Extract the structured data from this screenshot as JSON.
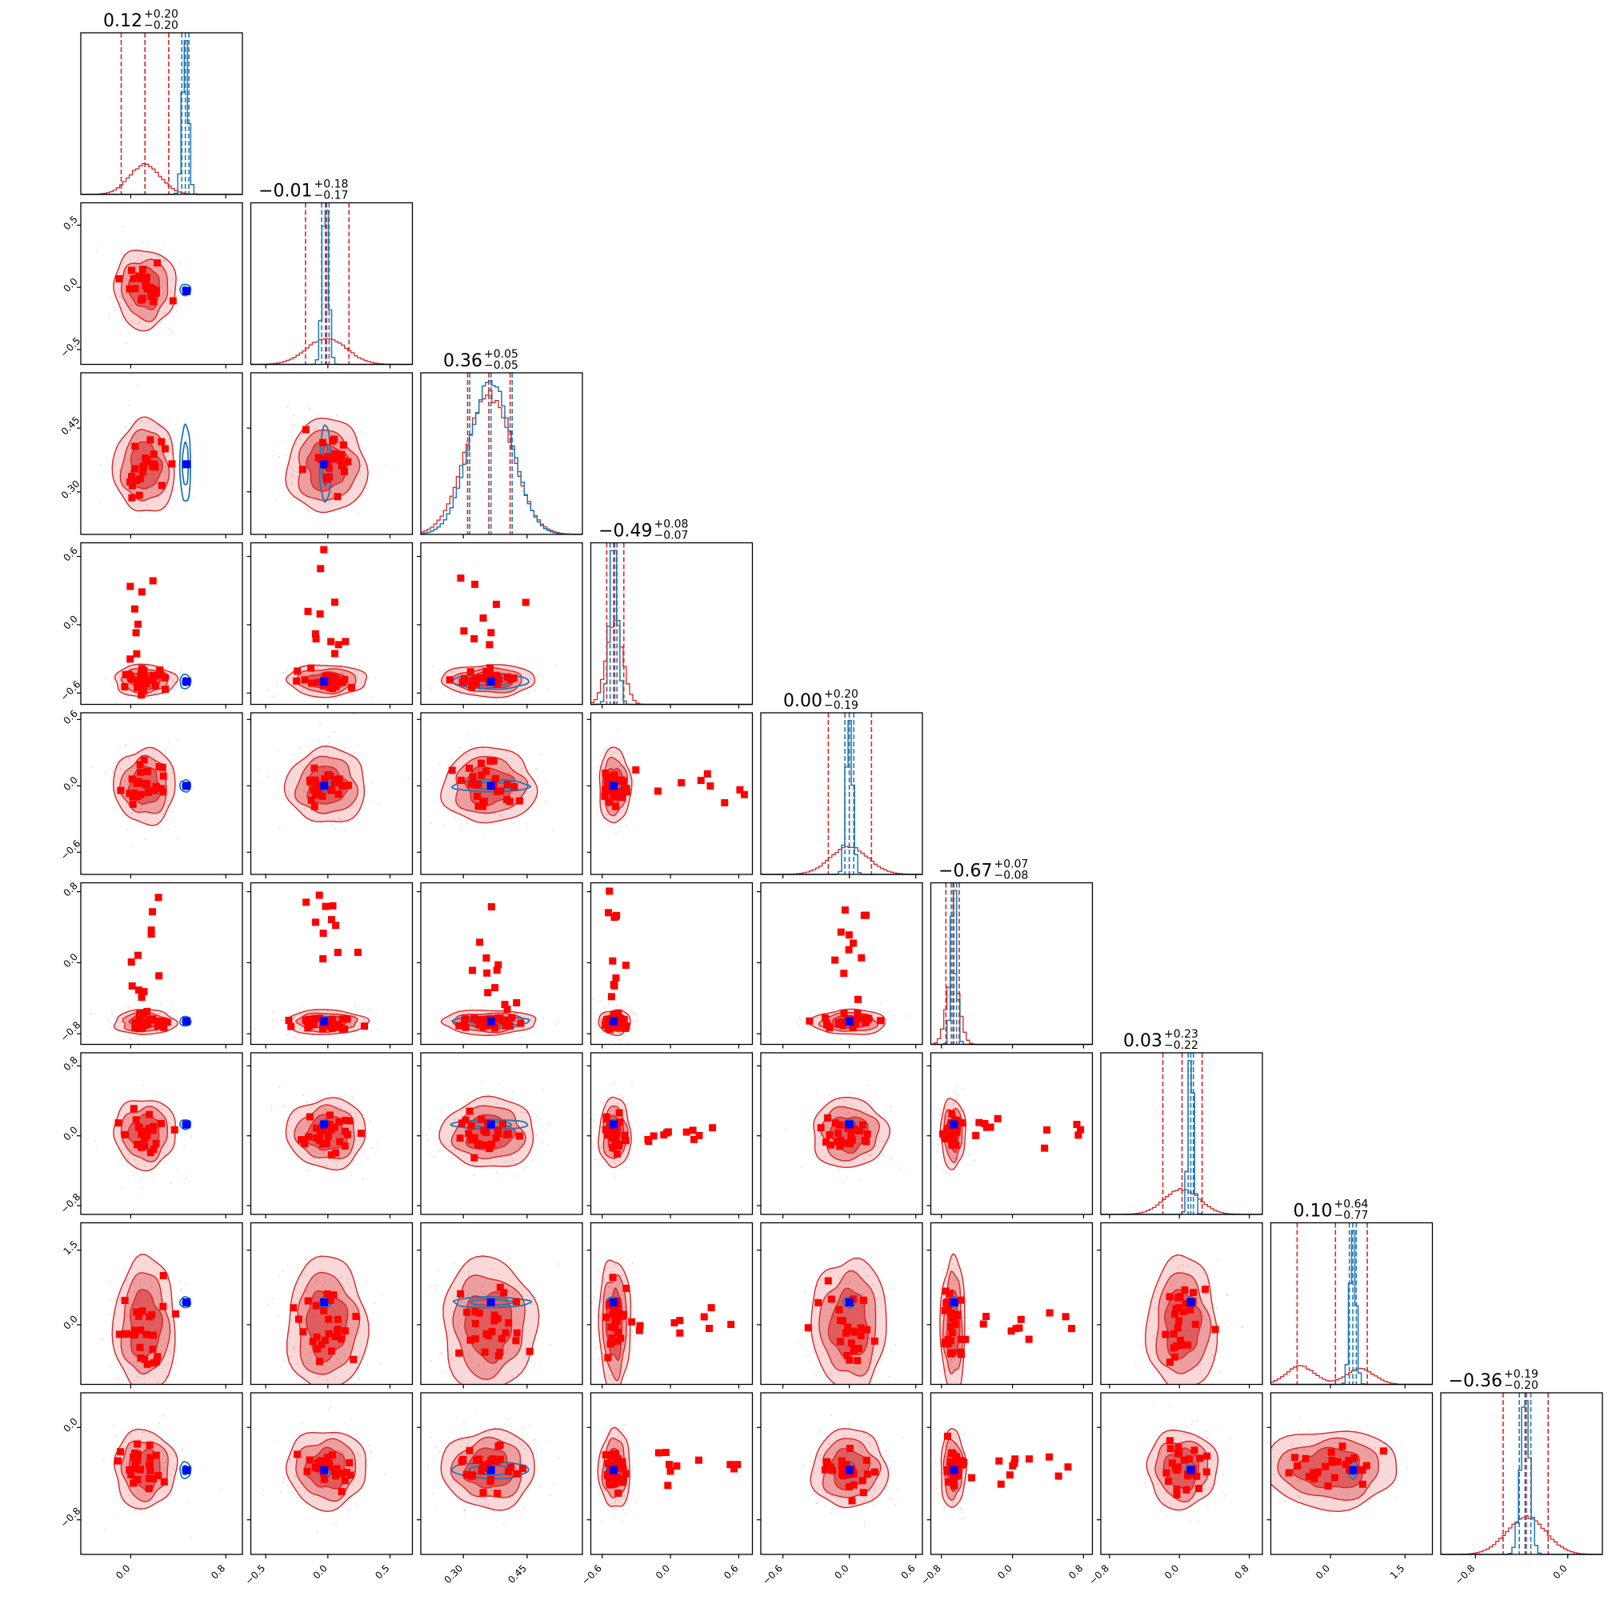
{
  "chart_data": {
    "type": "corner",
    "n_params": 9,
    "colors": {
      "posterior_a": "#d62728",
      "posterior_b": "#1f77b4",
      "sample_markers": "#ff0000",
      "truth_marker": "#0000ff",
      "frame": "#000000"
    },
    "params": [
      {
        "index": 0,
        "range": [
          -0.42,
          0.94
        ],
        "ticks": [
          0.0,
          0.8
        ],
        "tick_labels": [
          "0.0",
          "0.8"
        ],
        "title": {
          "median": "0.12",
          "plus": "+0.20",
          "minus": "−0.20"
        },
        "posterior_a": {
          "median": 0.12,
          "lo": -0.08,
          "hi": 0.32,
          "sd": 0.13
        },
        "posterior_b": {
          "median": 0.46,
          "lo": 0.43,
          "hi": 0.49,
          "sd": 0.025
        },
        "truth": 0.47
      },
      {
        "index": 1,
        "range": [
          -0.62,
          0.68
        ],
        "ticks": [
          -0.5,
          0.0,
          0.5
        ],
        "tick_labels": [
          "−0.5",
          "0.0",
          "0.5"
        ],
        "title": {
          "median": "−0.01",
          "plus": "+0.18",
          "minus": "−0.17"
        },
        "posterior_a": {
          "median": -0.01,
          "lo": -0.18,
          "hi": 0.17,
          "sd": 0.16
        },
        "posterior_b": {
          "median": -0.02,
          "lo": -0.05,
          "hi": 0.01,
          "sd": 0.025
        },
        "truth": -0.03
      },
      {
        "index": 2,
        "range": [
          0.2,
          0.58
        ],
        "ticks": [
          0.3,
          0.45
        ],
        "tick_labels": [
          "0.30",
          "0.45"
        ],
        "title": {
          "median": "0.36",
          "plus": "+0.05",
          "minus": "−0.05"
        },
        "posterior_a": {
          "median": 0.36,
          "lo": 0.31,
          "hi": 0.41,
          "sd": 0.055
        },
        "posterior_b": {
          "median": 0.365,
          "lo": 0.315,
          "hi": 0.415,
          "sd": 0.05
        },
        "truth": 0.365
      },
      {
        "index": 3,
        "range": [
          -0.7,
          0.72
        ],
        "ticks": [
          -0.6,
          0.0,
          0.6
        ],
        "tick_labels": [
          "−0.6",
          "0.0",
          "0.6"
        ],
        "title": {
          "median": "−0.49",
          "plus": "+0.08",
          "minus": "−0.07"
        },
        "posterior_a": {
          "median": -0.49,
          "lo": -0.56,
          "hi": -0.41,
          "sd": 0.07
        },
        "posterior_b": {
          "median": -0.5,
          "lo": -0.53,
          "hi": -0.47,
          "sd": 0.035
        },
        "truth": -0.5
      },
      {
        "index": 4,
        "range": [
          -0.8,
          0.66
        ],
        "ticks": [
          -0.6,
          0.0,
          0.6
        ],
        "tick_labels": [
          "−0.6",
          "0.0",
          "0.6"
        ],
        "title": {
          "median": "0.00",
          "plus": "+0.20",
          "minus": "−0.19"
        },
        "posterior_a": {
          "median": 0.0,
          "lo": -0.19,
          "hi": 0.2,
          "sd": 0.17
        },
        "posterior_b": {
          "median": 0.0,
          "lo": -0.04,
          "hi": 0.04,
          "sd": 0.03
        },
        "truth": 0.0
      },
      {
        "index": 5,
        "range": [
          -0.92,
          0.9
        ],
        "ticks": [
          -0.8,
          0.0,
          0.8
        ],
        "tick_labels": [
          "−0.8",
          "0.0",
          "0.8"
        ],
        "title": {
          "median": "−0.67",
          "plus": "+0.07",
          "minus": "−0.08"
        },
        "posterior_a": {
          "median": -0.67,
          "lo": -0.75,
          "hi": -0.6,
          "sd": 0.07
        },
        "posterior_b": {
          "median": -0.66,
          "lo": -0.69,
          "hi": -0.63,
          "sd": 0.03
        },
        "truth": -0.66
      },
      {
        "index": 6,
        "range": [
          -0.9,
          0.95
        ],
        "ticks": [
          -0.8,
          0.0,
          0.8
        ],
        "tick_labels": [
          "−0.8",
          "0.0",
          "0.8"
        ],
        "title": {
          "median": "0.03",
          "plus": "+0.23",
          "minus": "−0.22"
        },
        "posterior_a": {
          "median": 0.03,
          "lo": -0.19,
          "hi": 0.26,
          "sd": 0.2
        },
        "posterior_b": {
          "median": 0.13,
          "lo": 0.1,
          "hi": 0.16,
          "sd": 0.03
        },
        "truth": 0.13
      },
      {
        "index": 7,
        "range": [
          -1.2,
          2.05
        ],
        "ticks": [
          0.0,
          1.5
        ],
        "tick_labels": [
          "0.0",
          "1.5"
        ],
        "title": {
          "median": "0.10",
          "plus": "+0.64",
          "minus": "−0.77"
        },
        "posterior_a": {
          "median": 0.1,
          "lo": -0.67,
          "hi": 0.74,
          "sd": 0.5,
          "bimodal": [
            -0.6,
            0.6
          ]
        },
        "posterior_b": {
          "median": 0.45,
          "lo": 0.38,
          "hi": 0.52,
          "sd": 0.06
        },
        "truth": 0.45
      },
      {
        "index": 8,
        "range": [
          -1.1,
          0.3
        ],
        "ticks": [
          -0.8,
          0.0
        ],
        "tick_labels": [
          "−0.8",
          "0.0"
        ],
        "title": {
          "median": "−0.36",
          "plus": "+0.19",
          "minus": "−0.20"
        },
        "posterior_a": {
          "median": -0.36,
          "lo": -0.56,
          "hi": -0.17,
          "sd": 0.17
        },
        "posterior_b": {
          "median": -0.37,
          "lo": -0.42,
          "hi": -0.32,
          "sd": 0.04
        },
        "truth": -0.37
      }
    ]
  }
}
